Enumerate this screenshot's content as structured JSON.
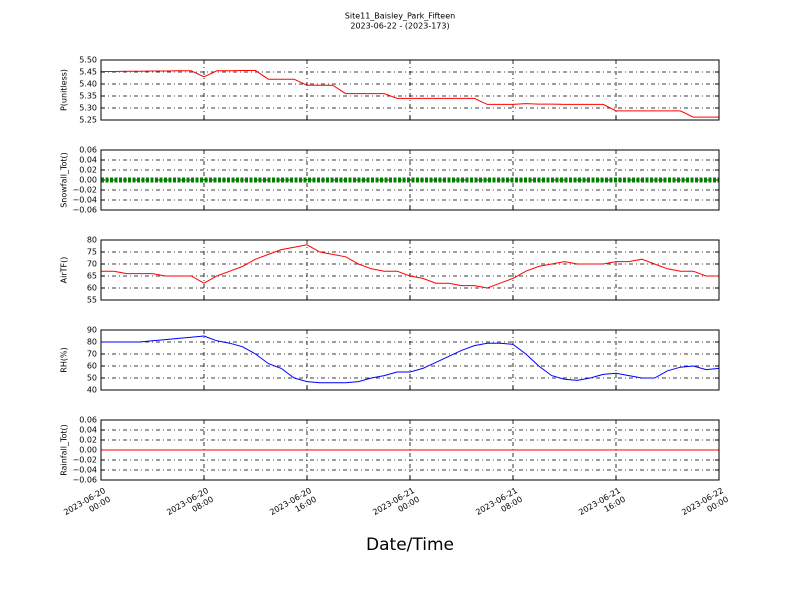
{
  "chart_data": {
    "type": "line",
    "title": "Site11_Baisley_Park_Fifteen",
    "subtitle": "2023-06-22 - (2023-173)",
    "xlabel": "Date/Time",
    "xlim": [
      "2023-06-20 00:00",
      "2023-06-22 00:00"
    ],
    "xticks": [
      {
        "value": "2023-06-20 00:00",
        "label": "2023-06-20\n00:00"
      },
      {
        "value": "2023-06-20 08:00",
        "label": "2023-06-20\n08:00"
      },
      {
        "value": "2023-06-20 16:00",
        "label": "2023-06-20\n16:00"
      },
      {
        "value": "2023-06-21 00:00",
        "label": "2023-06-21\n00:00"
      },
      {
        "value": "2023-06-21 08:00",
        "label": "2023-06-21\n08:00"
      },
      {
        "value": "2023-06-21 16:00",
        "label": "2023-06-21\n16:00"
      },
      {
        "value": "2023-06-22 00:00",
        "label": "2023-06-22\n00:00"
      }
    ],
    "grid": true,
    "x": [
      "2023-06-20 00:00",
      "2023-06-20 01:00",
      "2023-06-20 02:00",
      "2023-06-20 03:00",
      "2023-06-20 04:00",
      "2023-06-20 05:00",
      "2023-06-20 06:00",
      "2023-06-20 07:00",
      "2023-06-20 08:00",
      "2023-06-20 09:00",
      "2023-06-20 10:00",
      "2023-06-20 11:00",
      "2023-06-20 12:00",
      "2023-06-20 13:00",
      "2023-06-20 14:00",
      "2023-06-20 15:00",
      "2023-06-20 16:00",
      "2023-06-20 17:00",
      "2023-06-20 18:00",
      "2023-06-20 19:00",
      "2023-06-20 20:00",
      "2023-06-20 21:00",
      "2023-06-20 22:00",
      "2023-06-20 23:00",
      "2023-06-21 00:00",
      "2023-06-21 01:00",
      "2023-06-21 02:00",
      "2023-06-21 03:00",
      "2023-06-21 04:00",
      "2023-06-21 05:00",
      "2023-06-21 06:00",
      "2023-06-21 07:00",
      "2023-06-21 08:00",
      "2023-06-21 09:00",
      "2023-06-21 10:00",
      "2023-06-21 11:00",
      "2023-06-21 12:00",
      "2023-06-21 13:00",
      "2023-06-21 14:00",
      "2023-06-21 15:00",
      "2023-06-21 16:00",
      "2023-06-21 17:00",
      "2023-06-21 18:00",
      "2023-06-21 19:00",
      "2023-06-21 20:00",
      "2023-06-21 21:00",
      "2023-06-21 22:00",
      "2023-06-21 23:00",
      "2023-06-22 00:00"
    ],
    "panels": [
      {
        "ylabel": "P(unitless)",
        "color": "#ff0000",
        "ylim": [
          5.25,
          5.5
        ],
        "yticks": [
          {
            "value": 5.25,
            "label": "5.25"
          },
          {
            "value": 5.3,
            "label": "5.30"
          },
          {
            "value": 5.35,
            "label": "5.35"
          },
          {
            "value": 5.4,
            "label": "5.40"
          },
          {
            "value": 5.45,
            "label": "5.45"
          },
          {
            "value": 5.5,
            "label": "5.50"
          }
        ],
        "values": [
          5.452,
          5.452,
          5.453,
          5.453,
          5.454,
          5.454,
          5.455,
          5.455,
          5.43,
          5.455,
          5.455,
          5.456,
          5.456,
          5.42,
          5.42,
          5.42,
          5.395,
          5.395,
          5.395,
          5.36,
          5.36,
          5.36,
          5.36,
          5.34,
          5.34,
          5.34,
          5.34,
          5.34,
          5.34,
          5.34,
          5.315,
          5.315,
          5.315,
          5.318,
          5.316,
          5.316,
          5.315,
          5.315,
          5.315,
          5.315,
          5.288,
          5.288,
          5.288,
          5.288,
          5.288,
          5.288,
          5.262,
          5.262,
          5.262
        ]
      },
      {
        "ylabel": "Snowfall_Tot()",
        "color": "#008000",
        "style": "dots",
        "ylim": [
          -0.06,
          0.06
        ],
        "yticks": [
          {
            "value": -0.06,
            "label": "−0.06"
          },
          {
            "value": -0.04,
            "label": "−0.04"
          },
          {
            "value": -0.02,
            "label": "−0.02"
          },
          {
            "value": 0,
            "label": "0.00"
          },
          0.02,
          0.04,
          0.06
        ],
        "values": [
          0,
          0,
          0,
          0,
          0,
          0,
          0,
          0,
          0,
          0,
          0,
          0,
          0,
          0,
          0,
          0,
          0,
          0,
          0,
          0,
          0,
          0,
          0,
          0,
          0,
          0,
          0,
          0,
          0,
          0,
          0,
          0,
          0,
          0,
          0,
          0,
          0,
          0,
          0,
          0,
          0,
          0,
          0,
          0,
          0,
          0,
          0,
          0,
          0
        ]
      },
      {
        "ylabel": "AirTF()",
        "color": "#ff0000",
        "ylim": [
          55,
          80
        ],
        "yticks": [
          55,
          60,
          65,
          70,
          75,
          80
        ],
        "values": [
          67,
          67,
          66,
          66,
          66,
          65,
          65,
          65,
          62,
          65,
          67,
          69,
          72,
          74,
          76,
          77,
          78,
          75,
          74,
          73,
          70,
          68,
          67,
          67,
          65,
          64,
          62,
          62,
          61,
          61,
          60,
          62,
          64,
          67,
          69,
          70,
          71,
          70,
          70,
          70,
          71,
          71,
          72,
          70,
          68,
          67,
          67,
          65,
          65
        ]
      },
      {
        "ylabel": "RH(%)",
        "color": "#0000ff",
        "ylim": [
          40,
          90
        ],
        "yticks": [
          40,
          50,
          60,
          70,
          80,
          90
        ],
        "values": [
          80,
          80,
          80,
          80,
          81,
          82,
          83,
          84,
          85,
          81,
          79,
          76,
          70,
          62,
          58,
          50,
          47,
          46,
          46,
          46,
          47,
          50,
          52,
          55,
          55,
          58,
          63,
          68,
          73,
          77,
          79,
          79,
          78,
          70,
          60,
          52,
          49,
          48,
          50,
          53,
          54,
          52,
          50,
          50,
          56,
          59,
          60,
          57,
          58
        ]
      },
      {
        "ylabel": "Rainfall_Tot()",
        "color": "#ff0000",
        "ylim": [
          -0.06,
          0.06
        ],
        "yticks": [
          {
            "value": -0.06,
            "label": "−0.06"
          },
          {
            "value": -0.04,
            "label": "−0.04"
          },
          {
            "value": -0.02,
            "label": "−0.02"
          },
          {
            "value": 0,
            "label": "0.00"
          },
          0.02,
          0.04,
          0.06
        ],
        "values": [
          0,
          0,
          0,
          0,
          0,
          0,
          0,
          0,
          0,
          0,
          0,
          0,
          0,
          0,
          0,
          0,
          0,
          0,
          0,
          0,
          0,
          0,
          0,
          0,
          0,
          0,
          0,
          0,
          0,
          0,
          0,
          0,
          0,
          0,
          0,
          0,
          0,
          0,
          0,
          0,
          0,
          0,
          0,
          0,
          0,
          0,
          0,
          0,
          0
        ]
      }
    ]
  }
}
